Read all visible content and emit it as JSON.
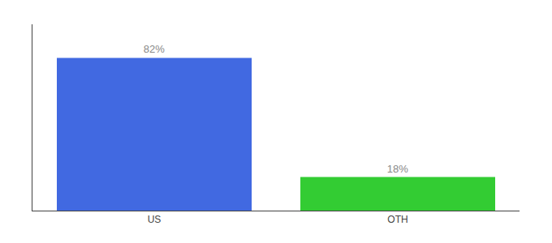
{
  "chart_data": {
    "type": "bar",
    "categories": [
      "US",
      "OTH"
    ],
    "values": [
      82,
      18
    ],
    "value_labels": [
      "82%",
      "18%"
    ],
    "colors": [
      "#4169e1",
      "#33cc33"
    ],
    "ylim": [
      0,
      100
    ],
    "data_labels": true,
    "tick_labels": "x",
    "grid": false
  }
}
